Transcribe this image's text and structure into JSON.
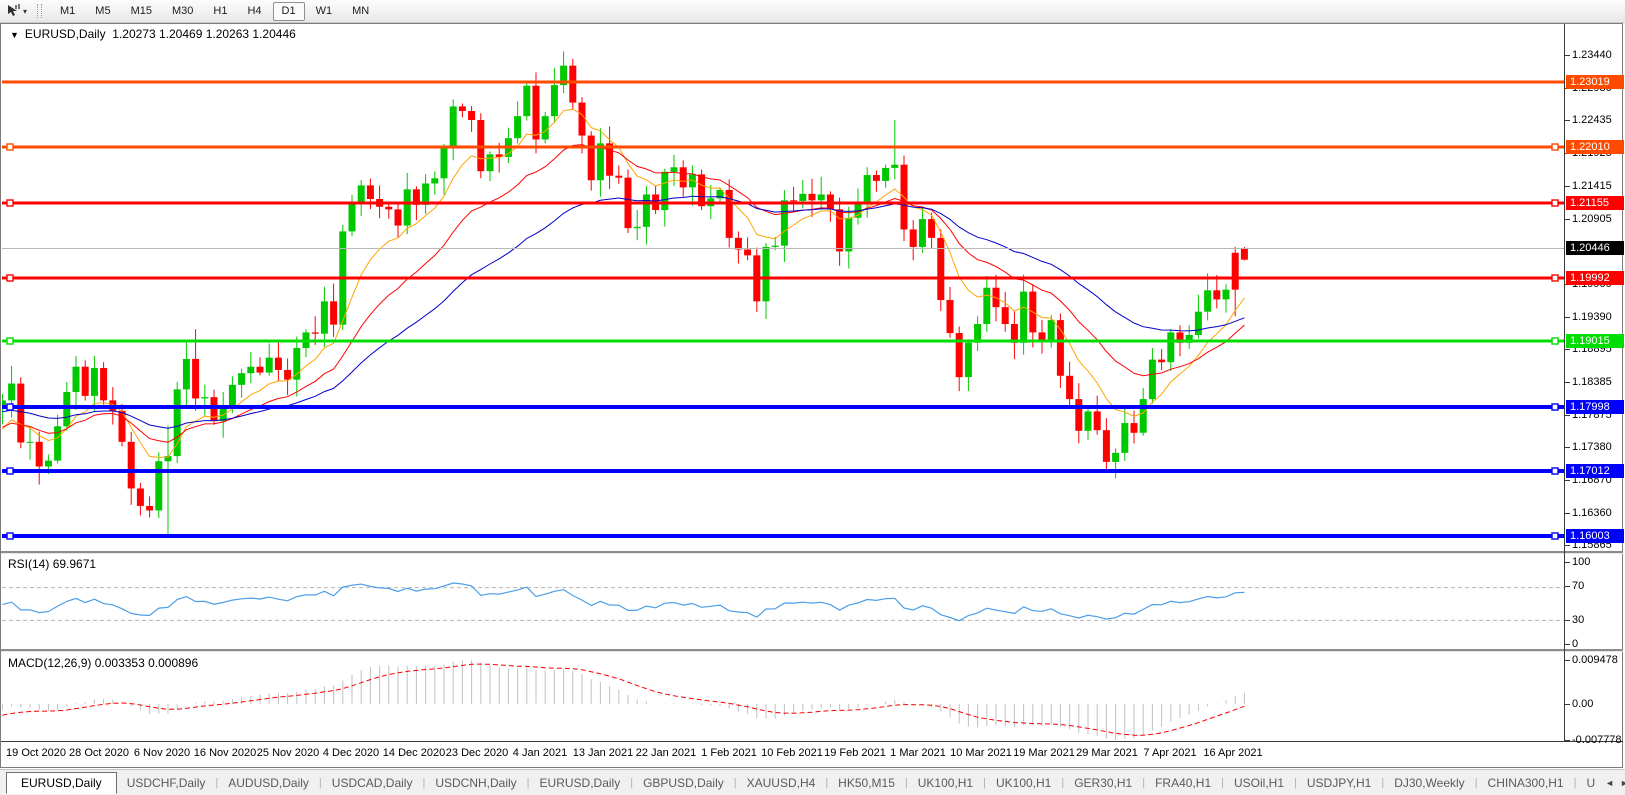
{
  "colors": {
    "bull": "#00c800",
    "bear": "#ff0000",
    "ma_fast": "#ffa500",
    "ma_mid": "#ff0000",
    "ma_slow": "#0000cc",
    "rsi_line": "#4d9ee8",
    "rsi_level_dash": "#b8b8b8",
    "macd_hist": "#c0c0c0",
    "macd_signal": "#ff0000",
    "current_price_line": "#b8b8b8",
    "current_price_badge": "#000000"
  },
  "toolbar": {
    "tool_icon": "crosshair-tool-icon",
    "dropdown_caret": "▾",
    "timeframes": [
      "M1",
      "M5",
      "M15",
      "M30",
      "H1",
      "H4",
      "D1",
      "W1",
      "MN"
    ],
    "active_timeframe": "D1"
  },
  "chart": {
    "info_line": {
      "collapse_icon": "▼",
      "symbol": "EURUSD,Daily",
      "ohlc": "1.20273 1.20469 1.20263 1.20446"
    },
    "price_axis_ticks": [
      "1.23440",
      "1.22930",
      "1.22435",
      "1.21925",
      "1.21415",
      "1.20905",
      "1.19900",
      "1.19390",
      "1.18895",
      "1.18385",
      "1.17875",
      "1.17380",
      "1.16870",
      "1.16360",
      "1.15865"
    ],
    "current_price": {
      "label": "1.20446",
      "value": 1.20446
    },
    "hlines": [
      {
        "label": "1.23019",
        "value": 1.23019,
        "color": "#ff4a00",
        "width": 3,
        "handles": false
      },
      {
        "label": "1.22010",
        "value": 1.2201,
        "color": "#ff4a00",
        "width": 3,
        "handles": true
      },
      {
        "label": "1.21155",
        "value": 1.21155,
        "color": "#ff0000",
        "width": 3,
        "handles": true
      },
      {
        "label": "1.19992",
        "value": 1.19992,
        "color": "#ff0000",
        "width": 3,
        "handles": true
      },
      {
        "label": "1.19015",
        "value": 1.19015,
        "color": "#00dd00",
        "width": 3,
        "handles": true
      },
      {
        "label": "1.17998",
        "value": 1.17998,
        "color": "#0000ff",
        "width": 4,
        "handles": true
      },
      {
        "label": "1.17012",
        "value": 1.17012,
        "color": "#0000ff",
        "width": 4,
        "handles": true
      },
      {
        "label": "1.16003",
        "value": 1.16003,
        "color": "#0000ff",
        "width": 4,
        "handles": true
      }
    ],
    "date_labels": [
      "19 Oct 2020",
      "28 Oct 2020",
      "6 Nov 2020",
      "16 Nov 2020",
      "25 Nov 2020",
      "4 Dec 2020",
      "14 Dec 2020",
      "23 Dec 2020",
      "4 Jan 2021",
      "13 Jan 2021",
      "22 Jan 2021",
      "1 Feb 2021",
      "10 Feb 2021",
      "19 Feb 2021",
      "1 Mar 2021",
      "10 Mar 2021",
      "19 Mar 2021",
      "29 Mar 2021",
      "7 Apr 2021",
      "16 Apr 2021"
    ]
  },
  "rsi_panel": {
    "title": "RSI(14)",
    "value": "69.9671",
    "axis_labels": [
      "100",
      "70",
      "30",
      "0"
    ],
    "levels": [
      70,
      30
    ]
  },
  "macd_panel": {
    "title": "MACD(12,26,9)",
    "values": "0.003353 0.000896",
    "axis_labels": {
      "max": "0.009478",
      "zero": "0.00",
      "min": "-0.007778"
    }
  },
  "chart_data": {
    "type": "candlestick",
    "symbol": "EURUSD",
    "timeframe": "Daily",
    "x_range": [
      "19 Oct 2020",
      "16 Apr 2021"
    ],
    "y_range": [
      1.15774,
      1.23913
    ],
    "seed_closes": [
      1.1865,
      1.1845,
      1.1815,
      1.179,
      1.184,
      1.187,
      1.1845,
      1.179,
      1.172,
      1.1665,
      1.163,
      1.1665,
      1.1702,
      1.172,
      1.174,
      1.1712,
      1.1725,
      1.1762,
      1.179,
      1.177,
      1.1745,
      1.178
    ],
    "closes": [
      1.181,
      1.1836,
      1.1745,
      1.1746,
      1.1708,
      1.1717,
      1.177,
      1.1823,
      1.1862,
      1.1817,
      1.186,
      1.181,
      1.1794,
      1.1746,
      1.1674,
      1.1647,
      1.164,
      1.1716,
      1.1724,
      1.1827,
      1.1874,
      1.1813,
      1.1815,
      1.1778,
      1.1801,
      1.1834,
      1.1852,
      1.1862,
      1.1853,
      1.1876,
      1.1857,
      1.1842,
      1.1891,
      1.1915,
      1.1913,
      1.1963,
      1.1927,
      1.2071,
      1.2115,
      1.2142,
      1.2121,
      1.2109,
      1.2105,
      1.208,
      1.2136,
      1.2112,
      1.2145,
      1.2153,
      1.22,
      1.2264,
      1.2257,
      1.2243,
      1.2164,
      1.219,
      1.2186,
      1.2215,
      1.2249,
      1.2296,
      1.2213,
      1.2249,
      1.2297,
      1.2327,
      1.227,
      1.2219,
      1.215,
      1.2207,
      1.2157,
      1.2154,
      1.2076,
      1.2078,
      1.2128,
      1.2104,
      1.2163,
      1.217,
      1.2139,
      1.2159,
      1.211,
      1.2122,
      1.2135,
      1.2061,
      1.2043,
      1.2034,
      1.1963,
      1.2047,
      1.2049,
      1.2119,
      1.2118,
      1.2129,
      1.2119,
      1.2128,
      1.2105,
      1.204,
      1.2092,
      1.2117,
      1.2158,
      1.2149,
      1.2169,
      1.2174,
      1.2074,
      1.2047,
      1.209,
      1.2061,
      1.1965,
      1.1914,
      1.1846,
      1.1899,
      1.1928,
      1.1984,
      1.1954,
      1.1928,
      1.1899,
      1.1978,
      1.1915,
      1.1904,
      1.1934,
      1.1848,
      1.1812,
      1.1763,
      1.1793,
      1.1764,
      1.1715,
      1.1729,
      1.1775,
      1.176,
      1.1812,
      1.1873,
      1.1869,
      1.1915,
      1.1899,
      1.1911,
      1.1947,
      1.198,
      1.1966,
      1.1981,
      1.2038,
      1.20446
    ],
    "overrides": {
      "18": {
        "h": 1.1771,
        "l": 1.1603
      },
      "21": {
        "h": 1.192
      },
      "61": {
        "h": 1.2349
      },
      "97": {
        "h": 1.2243
      },
      "98": {
        "l": 1.2056
      },
      "120": {
        "l": 1.1704
      },
      "134": {
        "h": 1.2047,
        "l": 1.194,
        "color": "bear"
      },
      "135": {
        "o": 1.20273,
        "h": 1.20469,
        "l": 1.20263,
        "c": 1.20446,
        "color": "bear"
      }
    },
    "moving_averages": [
      {
        "name": "fast",
        "period": 9,
        "method": "ema",
        "color_key": "ma_fast"
      },
      {
        "name": "mid",
        "period": 20,
        "method": "ema",
        "color_key": "ma_mid"
      },
      {
        "name": "slow",
        "period": 40,
        "method": "ema",
        "color_key": "ma_slow"
      }
    ],
    "indicators": {
      "rsi": {
        "period": 14,
        "current": 69.9671
      },
      "macd": {
        "fast": 12,
        "slow": 26,
        "signal": 9,
        "current_macd": 0.003353,
        "current_signal": 0.000896
      }
    }
  },
  "tabs": {
    "items": [
      {
        "label": "EURUSD,Daily",
        "active": true
      },
      {
        "label": "USDCHF,Daily",
        "active": false
      },
      {
        "label": "AUDUSD,Daily",
        "active": false
      },
      {
        "label": "USDCAD,Daily",
        "active": false
      },
      {
        "label": "USDCNH,Daily",
        "active": false
      },
      {
        "label": "EURUSD,Daily",
        "active": false
      },
      {
        "label": "GBPUSD,Daily",
        "active": false
      },
      {
        "label": "XAUUSD,H4",
        "active": false
      },
      {
        "label": "HK50,M15",
        "active": false
      },
      {
        "label": "UK100,H1",
        "active": false
      },
      {
        "label": "UK100,H1",
        "active": false
      },
      {
        "label": "GER30,H1",
        "active": false
      },
      {
        "label": "FRA40,H1",
        "active": false
      },
      {
        "label": "USOil,H1",
        "active": false
      },
      {
        "label": "USDJPY,H1",
        "active": false
      },
      {
        "label": "DJ30,Weekly",
        "active": false
      },
      {
        "label": "CHINA300,H1",
        "active": false
      },
      {
        "label": "U",
        "active": false
      }
    ],
    "scroll_left": "◄",
    "scroll_right": "►"
  }
}
